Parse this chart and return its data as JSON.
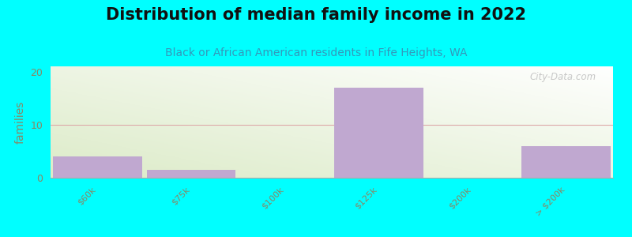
{
  "title": "Distribution of median family income in 2022",
  "subtitle": "Black or African American residents in Fife Heights, WA",
  "categories": [
    "$60k",
    "$75k",
    "$100k",
    "$125k",
    "$200k",
    "> $200k"
  ],
  "values": [
    4,
    1.5,
    0,
    17,
    0,
    6
  ],
  "bar_color": "#c0a8d0",
  "ylabel": "families",
  "ylim": [
    0,
    21
  ],
  "yticks": [
    0,
    10,
    20
  ],
  "background_color": "#00ffff",
  "grad_color_topleft": "#dde8cc",
  "grad_color_topright": "#e8f0e0",
  "grad_color_bottomleft": "#e8f0da",
  "grad_color_bottomright": "#f8faf5",
  "grid_color": "#ddaaaa",
  "title_fontsize": 15,
  "subtitle_fontsize": 10,
  "subtitle_color": "#3399bb",
  "watermark": "City-Data.com",
  "watermark_color": "#bbbbbb",
  "tick_label_color": "#888866",
  "ylabel_color": "#888866"
}
